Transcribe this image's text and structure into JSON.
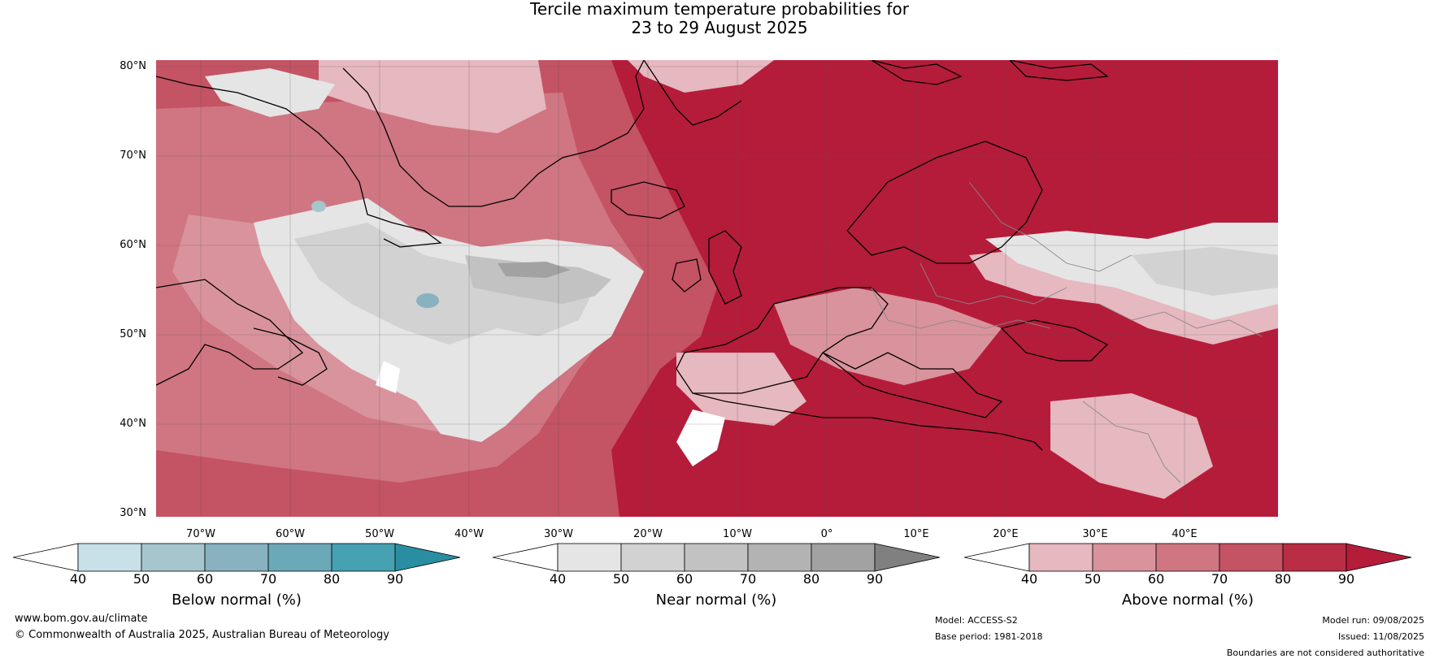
{
  "title_line1": "Tercile maximum temperature probabilities for",
  "title_line2": "23 to 29 August 2025",
  "lat_labels": [
    "80°N",
    "70°N",
    "60°N",
    "50°N",
    "40°N",
    "30°N"
  ],
  "lon_labels": [
    "70°W",
    "60°W",
    "50°W",
    "40°W",
    "30°W",
    "20°W",
    "10°W",
    "0°",
    "10°E",
    "20°E",
    "30°E",
    "40°E"
  ],
  "colorbars": [
    {
      "title": "Below normal (%)",
      "ticks": [
        "40",
        "50",
        "60",
        "70",
        "80",
        "90"
      ],
      "colors": [
        "#ffffff",
        "#c8e1e8",
        "#a6c6cd",
        "#88b2bf",
        "#6ba9b8",
        "#46a1b2",
        "#2a8ea3"
      ]
    },
    {
      "title": "Near normal (%)",
      "ticks": [
        "40",
        "50",
        "60",
        "70",
        "80",
        "90"
      ],
      "colors": [
        "#ffffff",
        "#e5e5e5",
        "#d2d2d2",
        "#c2c2c2",
        "#b3b3b3",
        "#a2a2a2",
        "#808080"
      ]
    },
    {
      "title": "Above normal (%)",
      "ticks": [
        "40",
        "50",
        "60",
        "70",
        "80",
        "90"
      ],
      "colors": [
        "#ffffff",
        "#e6b8bf",
        "#d9939c",
        "#cf7682",
        "#c45363",
        "#b92d45",
        "#b51c3a"
      ]
    }
  ],
  "footer": {
    "website": "www.bom.gov.au/climate",
    "copyright": "© Commonwealth of Australia 2025, Australian Bureau of Meteorology",
    "model": "Model: ACCESS-S2",
    "base_period": "Base period: 1981-2018",
    "model_run": "Model run: 09/08/2025",
    "issued": "Issued: 11/08/2025",
    "disclaimer": "Boundaries are not considered authoritative"
  }
}
